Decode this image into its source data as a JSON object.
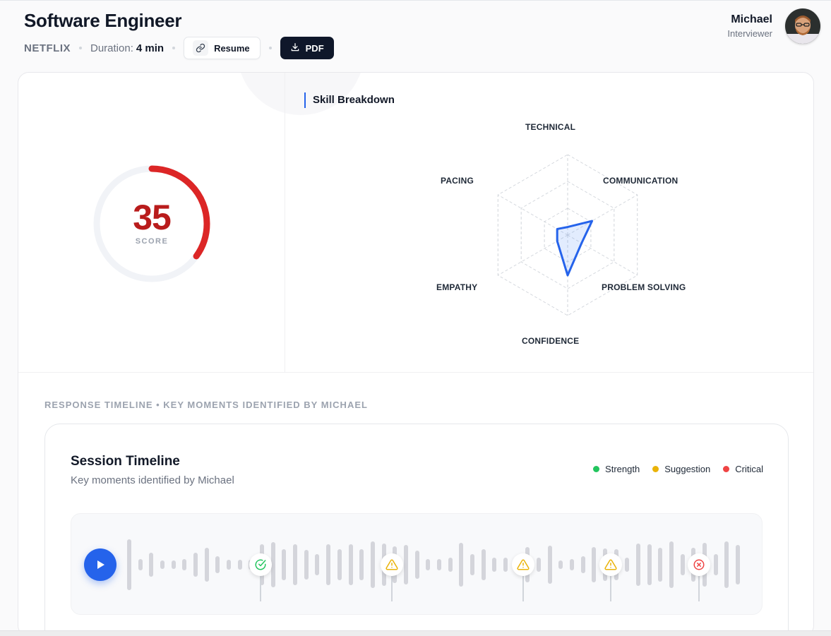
{
  "header": {
    "title": "Software Engineer",
    "company": "NETFLIX",
    "duration_label": "Duration:",
    "duration_value": "4 min",
    "resume_label": "Resume",
    "pdf_label": "PDF"
  },
  "user": {
    "name": "Michael",
    "role": "Interviewer"
  },
  "score": {
    "value": 35,
    "display": "35",
    "label": "SCORE",
    "max": 100,
    "color": "#dc2626"
  },
  "skills": {
    "title": "Skill Breakdown",
    "axes": [
      "TECHNICAL",
      "COMMUNICATION",
      "PROBLEM SOLVING",
      "CONFIDENCE",
      "EMPATHY",
      "PACING"
    ],
    "values": [
      0.1,
      0.35,
      0.2,
      0.5,
      0.15,
      0.15
    ],
    "color": "#2563eb"
  },
  "timeline": {
    "section_label": "RESPONSE TIMELINE • KEY MOMENTS IDENTIFIED BY MICHAEL",
    "title": "Session Timeline",
    "subtitle": "Key moments identified by Michael",
    "legend": [
      {
        "label": "Strength",
        "color": "#22c55e"
      },
      {
        "label": "Suggestion",
        "color": "#eab308"
      },
      {
        "label": "Critical",
        "color": "#ef4444"
      }
    ],
    "markers": [
      {
        "type": "strength",
        "icon": "check-circle-icon"
      },
      {
        "type": "suggestion",
        "icon": "warning-icon"
      },
      {
        "type": "suggestion",
        "icon": "warning-icon"
      },
      {
        "type": "suggestion",
        "icon": "warning-icon"
      },
      {
        "type": "critical",
        "icon": "x-circle-icon"
      }
    ]
  }
}
